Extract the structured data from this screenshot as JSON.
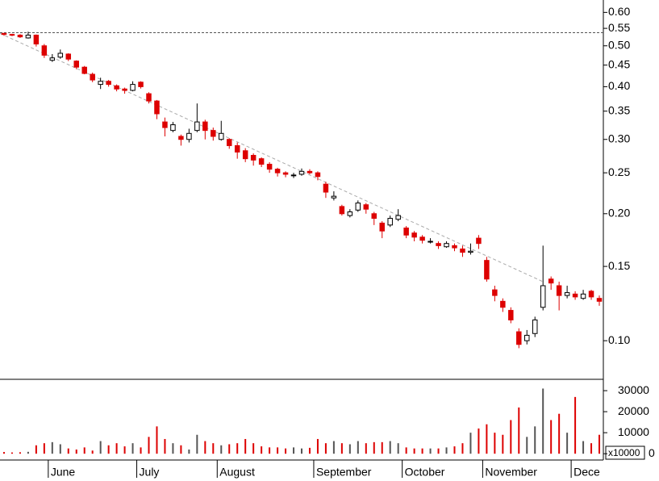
{
  "chart_data": {
    "type": "candlestick",
    "log_scale": true,
    "up_color": "#ffffff",
    "down_color": "#dd0000",
    "reference_line": 0.537,
    "trend_line": [
      0.535,
      0.138
    ],
    "categories": [
      null,
      null,
      null,
      null,
      null,
      null,
      "June",
      null,
      null,
      null,
      null,
      null,
      null,
      null,
      null,
      null,
      null,
      "July",
      null,
      null,
      null,
      null,
      null,
      null,
      null,
      null,
      null,
      "August",
      null,
      null,
      null,
      null,
      null,
      null,
      null,
      null,
      null,
      null,
      null,
      "September",
      null,
      null,
      null,
      null,
      null,
      null,
      null,
      null,
      null,
      null,
      "October",
      null,
      null,
      null,
      null,
      null,
      null,
      null,
      null,
      null,
      "November",
      null,
      null,
      null,
      null,
      null,
      null,
      null,
      null,
      null,
      null,
      "Dece",
      null,
      null,
      null
    ],
    "open": [
      0.535,
      0.532,
      0.53,
      0.522,
      0.53,
      0.5,
      0.462,
      0.47,
      0.478,
      0.46,
      0.445,
      0.428,
      0.405,
      0.412,
      0.402,
      0.395,
      0.392,
      0.41,
      0.385,
      0.37,
      0.33,
      0.315,
      0.305,
      0.3,
      0.315,
      0.33,
      0.315,
      0.3,
      0.3,
      0.29,
      0.282,
      0.275,
      0.27,
      0.262,
      0.255,
      0.25,
      0.247,
      0.248,
      0.252,
      0.25,
      0.235,
      0.218,
      0.208,
      0.198,
      0.204,
      0.21,
      0.2,
      0.19,
      0.188,
      0.194,
      0.185,
      0.18,
      0.176,
      0.172,
      0.17,
      0.167,
      0.168,
      0.165,
      0.162,
      0.175,
      0.155,
      0.132,
      0.124,
      0.118,
      0.105,
      0.1,
      0.104,
      0.12,
      0.14,
      0.135,
      0.128,
      0.129,
      0.126,
      0.131,
      0.126
    ],
    "high": [
      0.537,
      0.534,
      0.533,
      0.54,
      0.532,
      0.505,
      0.478,
      0.49,
      0.48,
      0.462,
      0.448,
      0.432,
      0.42,
      0.415,
      0.405,
      0.398,
      0.412,
      0.412,
      0.388,
      0.372,
      0.338,
      0.33,
      0.308,
      0.318,
      0.365,
      0.334,
      0.32,
      0.332,
      0.302,
      0.295,
      0.286,
      0.278,
      0.272,
      0.265,
      0.257,
      0.252,
      0.25,
      0.256,
      0.255,
      0.252,
      0.238,
      0.226,
      0.21,
      0.205,
      0.215,
      0.212,
      0.202,
      0.192,
      0.198,
      0.205,
      0.187,
      0.182,
      0.178,
      0.175,
      0.172,
      0.172,
      0.17,
      0.168,
      0.17,
      0.178,
      0.158,
      0.135,
      0.126,
      0.12,
      0.107,
      0.106,
      0.114,
      0.168,
      0.142,
      0.138,
      0.135,
      0.131,
      0.132,
      0.132,
      0.128
    ],
    "low": [
      0.528,
      0.527,
      0.522,
      0.52,
      0.498,
      0.468,
      0.458,
      0.466,
      0.46,
      0.44,
      0.428,
      0.41,
      0.395,
      0.4,
      0.39,
      0.385,
      0.39,
      0.396,
      0.365,
      0.335,
      0.305,
      0.312,
      0.29,
      0.295,
      0.312,
      0.3,
      0.298,
      0.298,
      0.285,
      0.27,
      0.265,
      0.26,
      0.258,
      0.25,
      0.245,
      0.244,
      0.243,
      0.246,
      0.248,
      0.24,
      0.218,
      0.215,
      0.198,
      0.196,
      0.202,
      0.2,
      0.188,
      0.175,
      0.186,
      0.192,
      0.175,
      0.172,
      0.17,
      0.17,
      0.165,
      0.166,
      0.163,
      0.158,
      0.16,
      0.165,
      0.138,
      0.124,
      0.117,
      0.11,
      0.096,
      0.098,
      0.102,
      0.118,
      0.132,
      0.118,
      0.126,
      0.125,
      0.125,
      0.125,
      0.121
    ],
    "close": [
      0.532,
      0.53,
      0.525,
      0.53,
      0.505,
      0.475,
      0.468,
      0.48,
      0.465,
      0.445,
      0.43,
      0.415,
      0.412,
      0.405,
      0.395,
      0.392,
      0.405,
      0.4,
      0.37,
      0.345,
      0.32,
      0.325,
      0.3,
      0.31,
      0.33,
      0.315,
      0.305,
      0.31,
      0.29,
      0.28,
      0.27,
      0.268,
      0.262,
      0.255,
      0.25,
      0.248,
      0.247,
      0.252,
      0.25,
      0.245,
      0.225,
      0.22,
      0.2,
      0.202,
      0.212,
      0.205,
      0.195,
      0.182,
      0.195,
      0.198,
      0.178,
      0.176,
      0.173,
      0.172,
      0.168,
      0.17,
      0.166,
      0.162,
      0.163,
      0.17,
      0.14,
      0.128,
      0.12,
      0.112,
      0.098,
      0.103,
      0.112,
      0.135,
      0.137,
      0.128,
      0.13,
      0.127,
      0.129,
      0.127,
      0.124
    ],
    "volume": [
      800,
      600,
      700,
      900,
      4000,
      5000,
      5500,
      4500,
      2500,
      2000,
      3000,
      1500,
      6000,
      4000,
      5000,
      3500,
      5000,
      3000,
      8000,
      13000,
      7000,
      5000,
      4000,
      2000,
      9000,
      6000,
      5000,
      4000,
      4500,
      5000,
      7000,
      5000,
      3500,
      3000,
      3000,
      2500,
      3000,
      2500,
      2800,
      7000,
      5000,
      6000,
      5000,
      4500,
      6000,
      5000,
      5500,
      5500,
      6000,
      5000,
      3000,
      2500,
      2500,
      2500,
      2500,
      3000,
      3500,
      5000,
      10000,
      12000,
      14000,
      10000,
      9000,
      16000,
      22000,
      8000,
      13000,
      31000,
      16000,
      19000,
      10000,
      27000,
      6000,
      5000,
      9000
    ],
    "ylim": [
      0.081,
      0.642
    ],
    "yticks": [
      {
        "value": 0.6,
        "label": "0.60"
      },
      0.55,
      {
        "value": 0.5,
        "label": "0.50"
      },
      0.45,
      {
        "value": 0.4,
        "label": "0.40"
      },
      0.35,
      {
        "value": 0.3,
        "label": "0.30"
      },
      0.25,
      {
        "value": 0.2,
        "label": "0.20"
      },
      0.15,
      {
        "value": 0.1,
        "label": "0.10"
      }
    ],
    "volume_ylim": [
      -3000,
      35400
    ],
    "volume_yticks": [
      0,
      10000,
      20000,
      30000
    ],
    "volume_unit_label": "x10000"
  }
}
